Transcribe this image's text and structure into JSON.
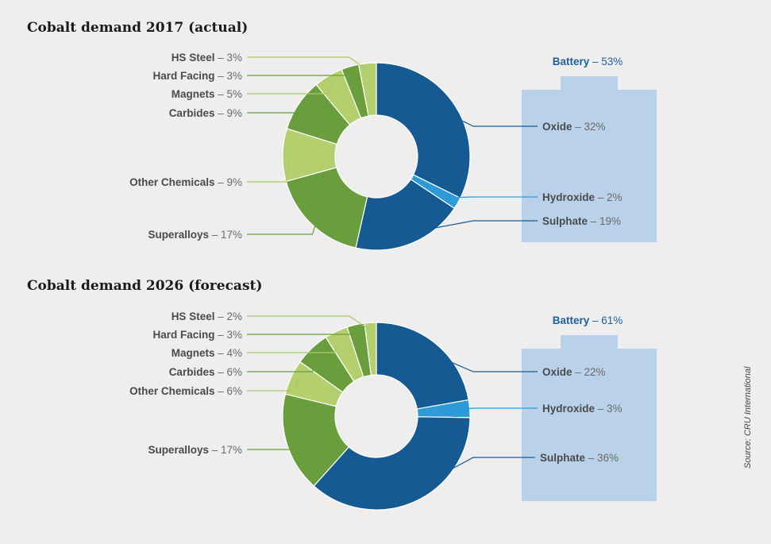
{
  "chart_data": [
    {
      "type": "pie",
      "title": "Cobalt demand 2017 (actual)",
      "group_label": "Battery",
      "group_value": "53%",
      "slices": [
        {
          "name": "Oxide",
          "value": 32,
          "label": "32%",
          "color": "#155a92",
          "group": "battery"
        },
        {
          "name": "Hydroxide",
          "value": 2,
          "label": "2%",
          "color": "#2d9bd8",
          "group": "battery"
        },
        {
          "name": "Sulphate",
          "value": 19,
          "label": "19%",
          "color": "#155a92",
          "group": "battery"
        },
        {
          "name": "Superalloys",
          "value": 17,
          "label": "17%",
          "color": "#6a9e3c",
          "group": "other"
        },
        {
          "name": "Other Chemicals",
          "value": 9,
          "label": "9%",
          "color": "#b3cf6e",
          "group": "other"
        },
        {
          "name": "Carbides",
          "value": 9,
          "label": "9%",
          "color": "#6a9e3c",
          "group": "other"
        },
        {
          "name": "Magnets",
          "value": 5,
          "label": "5%",
          "color": "#b3cf6e",
          "group": "other"
        },
        {
          "name": "Hard Facing",
          "value": 3,
          "label": "3%",
          "color": "#6a9e3c",
          "group": "other"
        },
        {
          "name": "HS Steel",
          "value": 3,
          "label": "3%",
          "color": "#b3cf6e",
          "group": "other"
        }
      ]
    },
    {
      "type": "pie",
      "title": "Cobalt demand 2026 (forecast)",
      "group_label": "Battery",
      "group_value": "61%",
      "slices": [
        {
          "name": "Oxide",
          "value": 22,
          "label": "22%",
          "color": "#155a92",
          "group": "battery"
        },
        {
          "name": "Hydroxide",
          "value": 3,
          "label": "3%",
          "color": "#2d9bd8",
          "group": "battery"
        },
        {
          "name": "Sulphate",
          "value": 36,
          "label": "36%",
          "color": "#155a92",
          "group": "battery"
        },
        {
          "name": "Superalloys",
          "value": 17,
          "label": "17%",
          "color": "#6a9e3c",
          "group": "other"
        },
        {
          "name": "Other Chemicals",
          "value": 6,
          "label": "6%",
          "color": "#b3cf6e",
          "group": "other"
        },
        {
          "name": "Carbides",
          "value": 6,
          "label": "6%",
          "color": "#6a9e3c",
          "group": "other"
        },
        {
          "name": "Magnets",
          "value": 4,
          "label": "4%",
          "color": "#b3cf6e",
          "group": "other"
        },
        {
          "name": "Hard Facing",
          "value": 3,
          "label": "3%",
          "color": "#6a9e3c",
          "group": "other"
        },
        {
          "name": "HS Steel",
          "value": 2,
          "label": "2%",
          "color": "#b3cf6e",
          "group": "other"
        }
      ]
    }
  ],
  "colors": {
    "battery_panel": "#b9d2ea",
    "battery_label": "#1f5f9c",
    "leader_battery": "#155a92",
    "leader_other": "#8fbf50"
  },
  "source": "Source: CRU International"
}
